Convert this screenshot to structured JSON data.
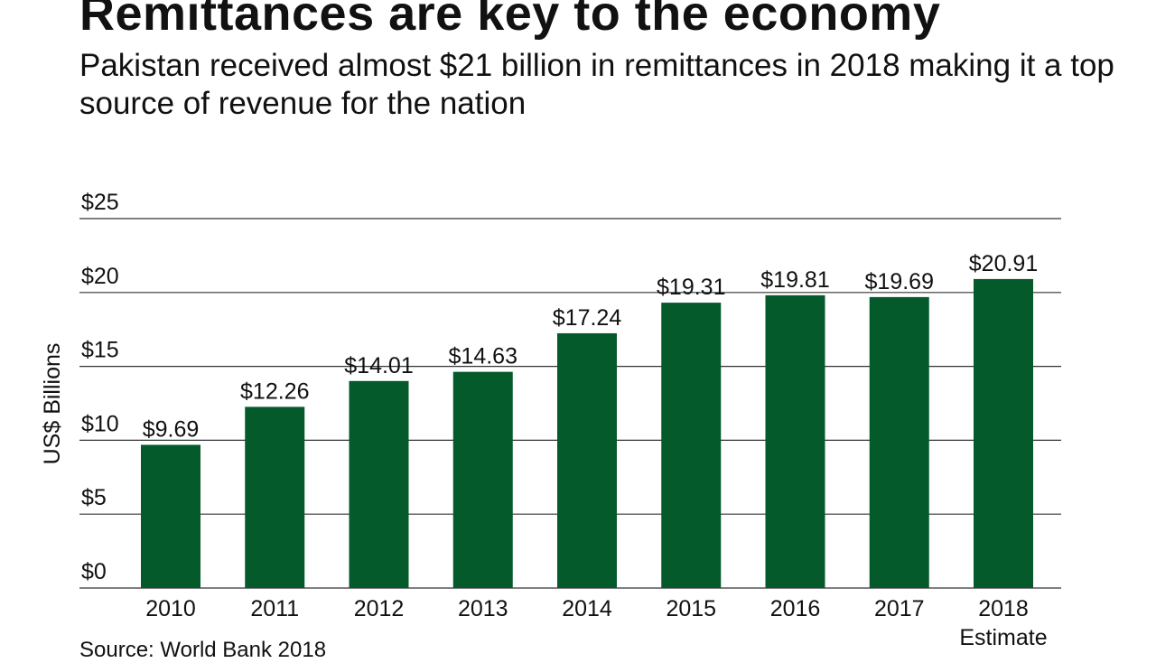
{
  "title": "Remittances are key to the economy",
  "subtitle": "Pakistan received almost $21 billion in remittances in 2018 making it a top source of revenue for the nation",
  "source": "Source: World Bank 2018",
  "colors": {
    "bar": "#045a2a",
    "grid": "#333333"
  },
  "chart_data": {
    "type": "bar",
    "title": "Remittances are key to the economy",
    "categories": [
      "2010",
      "2011",
      "2012",
      "2013",
      "2014",
      "2015",
      "2016",
      "2017",
      "2018"
    ],
    "category_sublabels": [
      "",
      "",
      "",
      "",
      "",
      "",
      "",
      "",
      "Estimate"
    ],
    "values": [
      9.69,
      12.26,
      14.01,
      14.63,
      17.24,
      19.31,
      19.81,
      19.69,
      20.91
    ],
    "data_labels": [
      "$9.69",
      "$12.26",
      "$14.01",
      "$14.63",
      "$17.24",
      "$19.31",
      "$19.81",
      "$19.69",
      "$20.91"
    ],
    "xlabel": "",
    "ylabel": "US$ Billions",
    "ylim": [
      0,
      25
    ],
    "yticks": [
      0,
      5,
      10,
      15,
      20,
      25
    ],
    "ytick_labels": [
      "$0",
      "$5",
      "$10",
      "$15",
      "$20",
      "$25"
    ],
    "grid": true,
    "legend": "none"
  }
}
